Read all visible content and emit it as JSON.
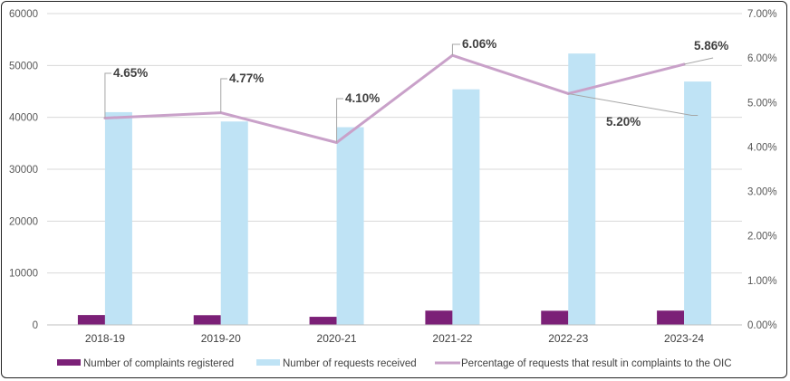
{
  "chart_data": {
    "type": "bar",
    "categories": [
      "2018-19",
      "2019-20",
      "2020-21",
      "2021-22",
      "2022-23",
      "2023-24"
    ],
    "series": [
      {
        "name": "Number of complaints registered",
        "type": "bar",
        "axis": "left",
        "color": "#7b2077",
        "values": [
          1900,
          1870,
          1560,
          2750,
          2720,
          2750
        ]
      },
      {
        "name": "Number of requests received",
        "type": "bar",
        "axis": "left",
        "color": "#bfe3f5",
        "values": [
          41000,
          39200,
          38100,
          45400,
          52300,
          46900
        ]
      },
      {
        "name": "Percentage of requests that result in complaints to the OIC",
        "type": "line",
        "axis": "right",
        "color": "#c9a1c9",
        "values": [
          4.65,
          4.77,
          4.1,
          6.06,
          5.2,
          5.86
        ],
        "labels": [
          "4.65%",
          "4.77%",
          "4.10%",
          "6.06%",
          "5.20%",
          "5.86%"
        ]
      }
    ],
    "y_left": {
      "lim": [
        0,
        60000
      ],
      "ticks": [
        0,
        10000,
        20000,
        30000,
        40000,
        50000,
        60000
      ],
      "tick_labels": [
        "0",
        "10000",
        "20000",
        "30000",
        "40000",
        "50000",
        "60000"
      ]
    },
    "y_right": {
      "lim": [
        0,
        7
      ],
      "ticks": [
        0,
        1,
        2,
        3,
        4,
        5,
        6,
        7
      ],
      "tick_labels": [
        "0.00%",
        "1.00%",
        "2.00%",
        "3.00%",
        "4.00%",
        "5.00%",
        "6.00%",
        "7.00%"
      ]
    },
    "grid": true,
    "legend": "bottom",
    "title": "",
    "xlabel": "",
    "ylabel": ""
  }
}
